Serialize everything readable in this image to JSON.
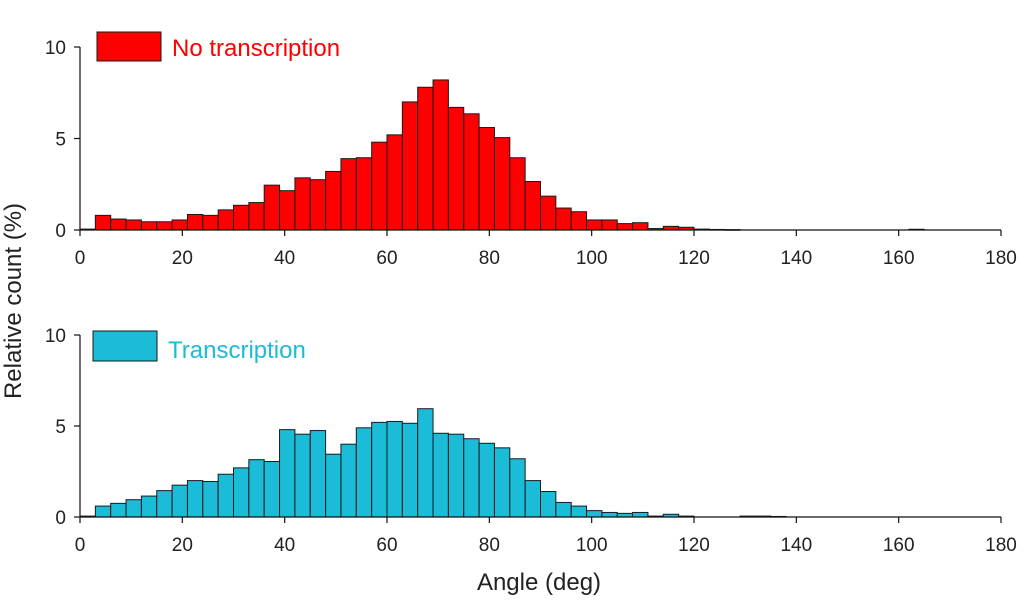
{
  "chart_data": [
    {
      "type": "bar",
      "subtype": "histogram",
      "series_name": "No transcription",
      "color": "#FF0000",
      "edge_color": "#1a1a1a",
      "bin_width": 3,
      "x_start": 0,
      "xlim": [
        0,
        180
      ],
      "ylim": [
        0,
        10
      ],
      "xticks": [
        0,
        20,
        40,
        60,
        80,
        100,
        120,
        140,
        160,
        180
      ],
      "yticks": [
        0,
        5,
        10
      ],
      "values": [
        0.05,
        0.8,
        0.6,
        0.55,
        0.45,
        0.45,
        0.55,
        0.85,
        0.8,
        1.1,
        1.35,
        1.5,
        2.45,
        2.15,
        2.85,
        2.75,
        3.2,
        3.9,
        3.95,
        4.8,
        5.2,
        7.0,
        7.8,
        8.2,
        6.7,
        6.35,
        5.6,
        5.05,
        3.95,
        2.65,
        1.85,
        1.2,
        1.0,
        0.55,
        0.55,
        0.35,
        0.4,
        0.08,
        0.2,
        0.15,
        0.05,
        0.03,
        0.02,
        0,
        0,
        0,
        0,
        0,
        0,
        0,
        0,
        0,
        0,
        0,
        0.04,
        0,
        0,
        0,
        0,
        0
      ]
    },
    {
      "type": "bar",
      "subtype": "histogram",
      "series_name": "Transcription",
      "color": "#1BBCD8",
      "edge_color": "#1a1a1a",
      "bin_width": 3,
      "x_start": 0,
      "xlim": [
        0,
        180
      ],
      "ylim": [
        0,
        10
      ],
      "xticks": [
        0,
        20,
        40,
        60,
        80,
        100,
        120,
        140,
        160,
        180
      ],
      "yticks": [
        0,
        5,
        10
      ],
      "values": [
        0.05,
        0.6,
        0.75,
        0.95,
        1.15,
        1.45,
        1.75,
        2.0,
        1.95,
        2.35,
        2.7,
        3.15,
        3.05,
        4.8,
        4.55,
        4.75,
        3.45,
        4.0,
        4.9,
        5.2,
        5.25,
        5.15,
        5.95,
        4.6,
        4.55,
        4.3,
        4.05,
        3.8,
        3.2,
        2.0,
        1.4,
        0.8,
        0.6,
        0.35,
        0.25,
        0.2,
        0.25,
        0.05,
        0.15,
        0.05,
        0,
        0,
        0,
        0.05,
        0.05,
        0.03,
        0,
        0,
        0,
        0,
        0,
        0,
        0,
        0,
        0,
        0,
        0,
        0,
        0,
        0
      ]
    }
  ],
  "shared": {
    "xlabel": "Angle (deg)",
    "ylabel": "Relative count (%)"
  }
}
